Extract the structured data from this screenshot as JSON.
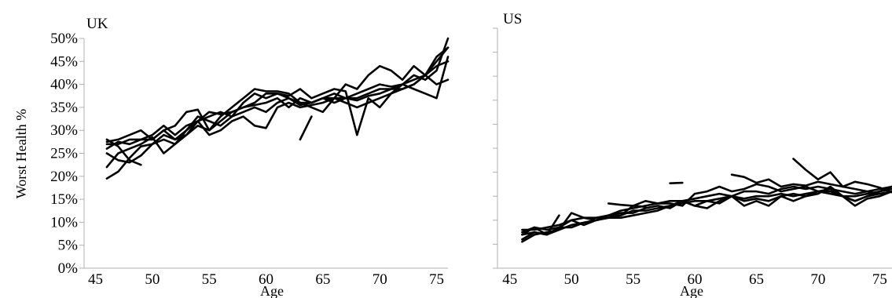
{
  "chart_data": [
    {
      "type": "line",
      "title": "UK",
      "xlabel": "Age",
      "ylabel": "Worst Health %",
      "xlim": [
        44,
        76
      ],
      "ylim": [
        0,
        0.5
      ],
      "x_ticks": [
        45,
        50,
        55,
        60,
        65,
        70,
        75
      ],
      "x_tick_labels": [
        "45",
        "50",
        "55",
        "60",
        "65",
        "70",
        "75"
      ],
      "y_ticks": [
        0,
        0.05,
        0.1,
        0.15,
        0.2,
        0.25,
        0.3,
        0.35,
        0.4,
        0.45,
        0.5
      ],
      "y_tick_labels": [
        "0%",
        "5%",
        "10%",
        "15%",
        "20%",
        "25%",
        "30%",
        "35%",
        "40%",
        "45%",
        "50%"
      ],
      "grid": false,
      "series": [
        {
          "x": [
            46,
            47,
            48,
            49,
            50,
            51,
            52,
            53,
            54,
            55,
            56,
            57,
            58,
            59,
            60,
            61,
            62,
            63,
            64,
            65,
            66,
            67,
            68,
            69,
            70,
            71,
            72,
            73,
            74,
            75,
            76
          ],
          "values": [
            0.195,
            0.21,
            0.24,
            0.265,
            0.27,
            0.28,
            0.27,
            0.29,
            0.31,
            0.3,
            0.32,
            0.34,
            0.35,
            0.36,
            0.38,
            0.38,
            0.37,
            0.355,
            0.36,
            0.37,
            0.36,
            0.37,
            0.38,
            0.39,
            0.4,
            0.395,
            0.4,
            0.41,
            0.42,
            0.44,
            0.45
          ]
        },
        {
          "x": [
            46,
            47,
            48,
            49,
            50,
            51,
            52,
            53,
            54,
            55,
            56,
            57,
            58,
            59,
            60,
            61,
            62,
            63,
            64,
            65,
            66,
            67,
            68,
            69,
            70,
            71,
            72,
            73,
            74,
            75,
            76
          ],
          "values": [
            0.22,
            0.25,
            0.26,
            0.27,
            0.285,
            0.25,
            0.27,
            0.3,
            0.33,
            0.32,
            0.31,
            0.33,
            0.34,
            0.35,
            0.34,
            0.36,
            0.37,
            0.36,
            0.36,
            0.37,
            0.38,
            0.37,
            0.37,
            0.38,
            0.39,
            0.39,
            0.4,
            0.42,
            0.41,
            0.43,
            0.5
          ]
        },
        {
          "x": [
            46,
            47,
            48,
            49,
            50,
            51,
            52,
            53,
            54,
            55,
            56,
            57,
            58,
            59,
            60,
            61,
            62,
            63,
            64,
            65,
            66,
            67,
            68,
            69,
            70,
            71,
            72,
            73,
            74,
            75,
            76
          ],
          "values": [
            0.25,
            0.235,
            0.23,
            0.245,
            0.27,
            0.29,
            0.28,
            0.3,
            0.32,
            0.29,
            0.3,
            0.32,
            0.33,
            0.31,
            0.305,
            0.35,
            0.36,
            0.35,
            0.355,
            0.36,
            0.37,
            0.36,
            0.35,
            0.36,
            0.37,
            0.38,
            0.4,
            0.39,
            0.38,
            0.37,
            0.46
          ]
        },
        {
          "x": [
            46,
            47,
            48,
            49,
            50,
            51,
            52,
            53,
            54,
            55,
            56,
            57,
            58,
            59,
            60,
            61,
            62,
            63,
            64,
            65,
            66,
            67,
            68,
            69,
            70,
            71,
            72,
            73,
            74,
            75,
            76
          ],
          "values": [
            0.275,
            0.28,
            0.29,
            0.3,
            0.28,
            0.3,
            0.31,
            0.34,
            0.345,
            0.3,
            0.33,
            0.35,
            0.37,
            0.39,
            0.385,
            0.385,
            0.38,
            0.36,
            0.35,
            0.34,
            0.37,
            0.4,
            0.39,
            0.42,
            0.44,
            0.43,
            0.41,
            0.44,
            0.42,
            0.4,
            0.41
          ]
        },
        {
          "x": [
            46,
            47,
            48,
            49,
            50,
            51,
            52,
            53,
            54,
            55,
            56,
            57,
            58,
            59,
            60,
            61,
            62,
            63,
            64,
            65,
            66,
            67,
            68,
            69,
            70,
            71,
            72,
            73,
            74,
            75,
            76
          ],
          "values": [
            0.27,
            0.27,
            0.28,
            0.28,
            0.29,
            0.31,
            0.29,
            0.31,
            0.32,
            0.34,
            0.335,
            0.34,
            0.35,
            0.355,
            0.36,
            0.37,
            0.35,
            0.37,
            0.36,
            0.37,
            0.37,
            0.37,
            0.365,
            0.375,
            0.38,
            0.39,
            0.39,
            0.4,
            0.42,
            0.45,
            0.48
          ]
        },
        {
          "x": [
            46,
            47,
            48,
            49,
            50,
            51,
            52,
            53,
            54,
            55,
            56,
            57,
            58,
            59,
            60,
            61,
            62,
            63,
            64,
            65,
            66,
            67,
            68,
            69,
            70,
            71,
            72,
            73,
            74,
            75,
            76
          ],
          "values": [
            0.26,
            0.275,
            0.27,
            0.28,
            0.28,
            0.3,
            0.28,
            0.29,
            0.32,
            0.33,
            0.34,
            0.33,
            0.36,
            0.38,
            0.37,
            0.38,
            0.375,
            0.39,
            0.37,
            0.38,
            0.39,
            0.385,
            0.29,
            0.37,
            0.35,
            0.38,
            0.39,
            0.4,
            0.42,
            0.46,
            0.48
          ]
        },
        {
          "x": [
            46,
            47,
            48,
            49
          ],
          "values": [
            0.28,
            0.265,
            0.235,
            0.225
          ]
        },
        {
          "x": [
            63,
            64
          ],
          "values": [
            0.28,
            0.33
          ]
        }
      ]
    },
    {
      "type": "line",
      "title": "US",
      "xlabel": "Age",
      "ylabel": "",
      "xlim": [
        44,
        76
      ],
      "ylim": [
        0,
        0.5
      ],
      "x_ticks": [
        45,
        50,
        55,
        60,
        65,
        70,
        75
      ],
      "x_tick_labels": [
        "45",
        "50",
        "55",
        "60",
        "65",
        "70",
        "75"
      ],
      "y_ticks": [
        0,
        0.05,
        0.1,
        0.15,
        0.2,
        0.25,
        0.3,
        0.35,
        0.4,
        0.45,
        0.5
      ],
      "y_tick_labels": [],
      "grid": false,
      "series": [
        {
          "x": [
            46,
            47,
            48,
            49,
            50,
            51,
            52,
            53,
            54,
            55,
            56,
            57,
            58,
            59,
            60,
            61,
            62,
            63,
            64,
            65,
            66,
            67,
            68,
            69,
            70,
            71,
            72,
            73,
            74,
            75,
            76
          ],
          "values": [
            0.055,
            0.07,
            0.075,
            0.08,
            0.09,
            0.095,
            0.1,
            0.105,
            0.11,
            0.12,
            0.12,
            0.125,
            0.13,
            0.135,
            0.14,
            0.14,
            0.145,
            0.15,
            0.145,
            0.15,
            0.15,
            0.155,
            0.15,
            0.155,
            0.16,
            0.155,
            0.15,
            0.15,
            0.155,
            0.16,
            0.17
          ]
        },
        {
          "x": [
            46,
            47,
            48,
            49,
            50,
            51,
            52,
            53,
            54,
            55,
            56,
            57,
            58,
            59,
            60,
            61,
            62,
            63,
            64,
            65,
            66,
            67,
            68,
            69,
            70,
            71,
            72,
            73,
            74,
            75,
            76
          ],
          "values": [
            0.07,
            0.075,
            0.07,
            0.085,
            0.1,
            0.09,
            0.1,
            0.11,
            0.115,
            0.115,
            0.125,
            0.13,
            0.125,
            0.14,
            0.13,
            0.14,
            0.135,
            0.15,
            0.14,
            0.145,
            0.14,
            0.15,
            0.155,
            0.15,
            0.16,
            0.16,
            0.15,
            0.14,
            0.15,
            0.155,
            0.16
          ]
        },
        {
          "x": [
            46,
            47,
            48,
            49,
            50,
            51,
            52,
            53,
            54,
            55,
            56,
            57,
            58,
            59,
            60,
            61,
            62,
            63,
            64,
            65,
            66,
            67,
            68,
            69,
            70,
            71,
            72,
            73,
            74,
            75,
            76
          ],
          "values": [
            0.08,
            0.08,
            0.085,
            0.09,
            0.1,
            0.105,
            0.1,
            0.11,
            0.12,
            0.125,
            0.13,
            0.135,
            0.14,
            0.14,
            0.145,
            0.15,
            0.155,
            0.15,
            0.16,
            0.16,
            0.155,
            0.165,
            0.17,
            0.165,
            0.17,
            0.165,
            0.16,
            0.155,
            0.16,
            0.165,
            0.17
          ]
        },
        {
          "x": [
            46,
            47,
            48,
            49,
            50,
            51,
            52,
            53,
            54,
            55,
            56,
            57,
            58,
            59,
            60,
            61,
            62,
            63,
            64,
            65,
            66,
            67,
            68,
            69,
            70,
            71,
            72,
            73,
            74,
            75,
            76
          ],
          "values": [
            0.06,
            0.075,
            0.07,
            0.08,
            0.115,
            0.105,
            0.105,
            0.11,
            0.11,
            0.13,
            0.14,
            0.135,
            0.135,
            0.13,
            0.155,
            0.16,
            0.17,
            0.16,
            0.165,
            0.175,
            0.17,
            0.16,
            0.165,
            0.17,
            0.16,
            0.165,
            0.15,
            0.14,
            0.15,
            0.16,
            0.165
          ]
        },
        {
          "x": [
            46,
            47,
            48,
            49,
            50,
            51,
            52,
            53,
            54,
            55,
            56,
            57,
            58,
            59,
            60,
            61,
            62,
            63,
            64,
            65,
            66,
            67,
            68,
            69,
            70,
            71,
            72,
            73,
            74,
            75,
            76
          ],
          "values": [
            0.075,
            0.085,
            0.08,
            0.085,
            0.085,
            0.095,
            0.1,
            0.105,
            0.105,
            0.11,
            0.115,
            0.12,
            0.13,
            0.14,
            0.13,
            0.125,
            0.14,
            0.15,
            0.13,
            0.14,
            0.13,
            0.15,
            0.14,
            0.15,
            0.155,
            0.17,
            0.15,
            0.13,
            0.145,
            0.15,
            0.16
          ]
        },
        {
          "x": [
            46,
            47,
            48,
            49
          ],
          "values": [
            0.07,
            0.085,
            0.07,
            0.11
          ]
        },
        {
          "x": [
            53,
            54,
            55,
            56
          ],
          "values": [
            0.135,
            0.132,
            0.13,
            0.128
          ]
        },
        {
          "x": [
            58,
            59
          ],
          "values": [
            0.177,
            0.178
          ]
        },
        {
          "x": [
            63,
            64,
            65,
            66,
            67,
            68,
            69,
            70,
            71,
            72,
            73,
            74,
            75,
            76
          ],
          "values": [
            0.195,
            0.19,
            0.178,
            0.185,
            0.17,
            0.175,
            0.172,
            0.18,
            0.175,
            0.17,
            0.165,
            0.16,
            0.155,
            0.16
          ]
        },
        {
          "x": [
            68,
            69,
            70,
            71,
            72,
            73,
            74,
            75,
            76
          ],
          "values": [
            0.228,
            0.205,
            0.185,
            0.2,
            0.17,
            0.18,
            0.175,
            0.168,
            0.158
          ]
        }
      ]
    }
  ]
}
